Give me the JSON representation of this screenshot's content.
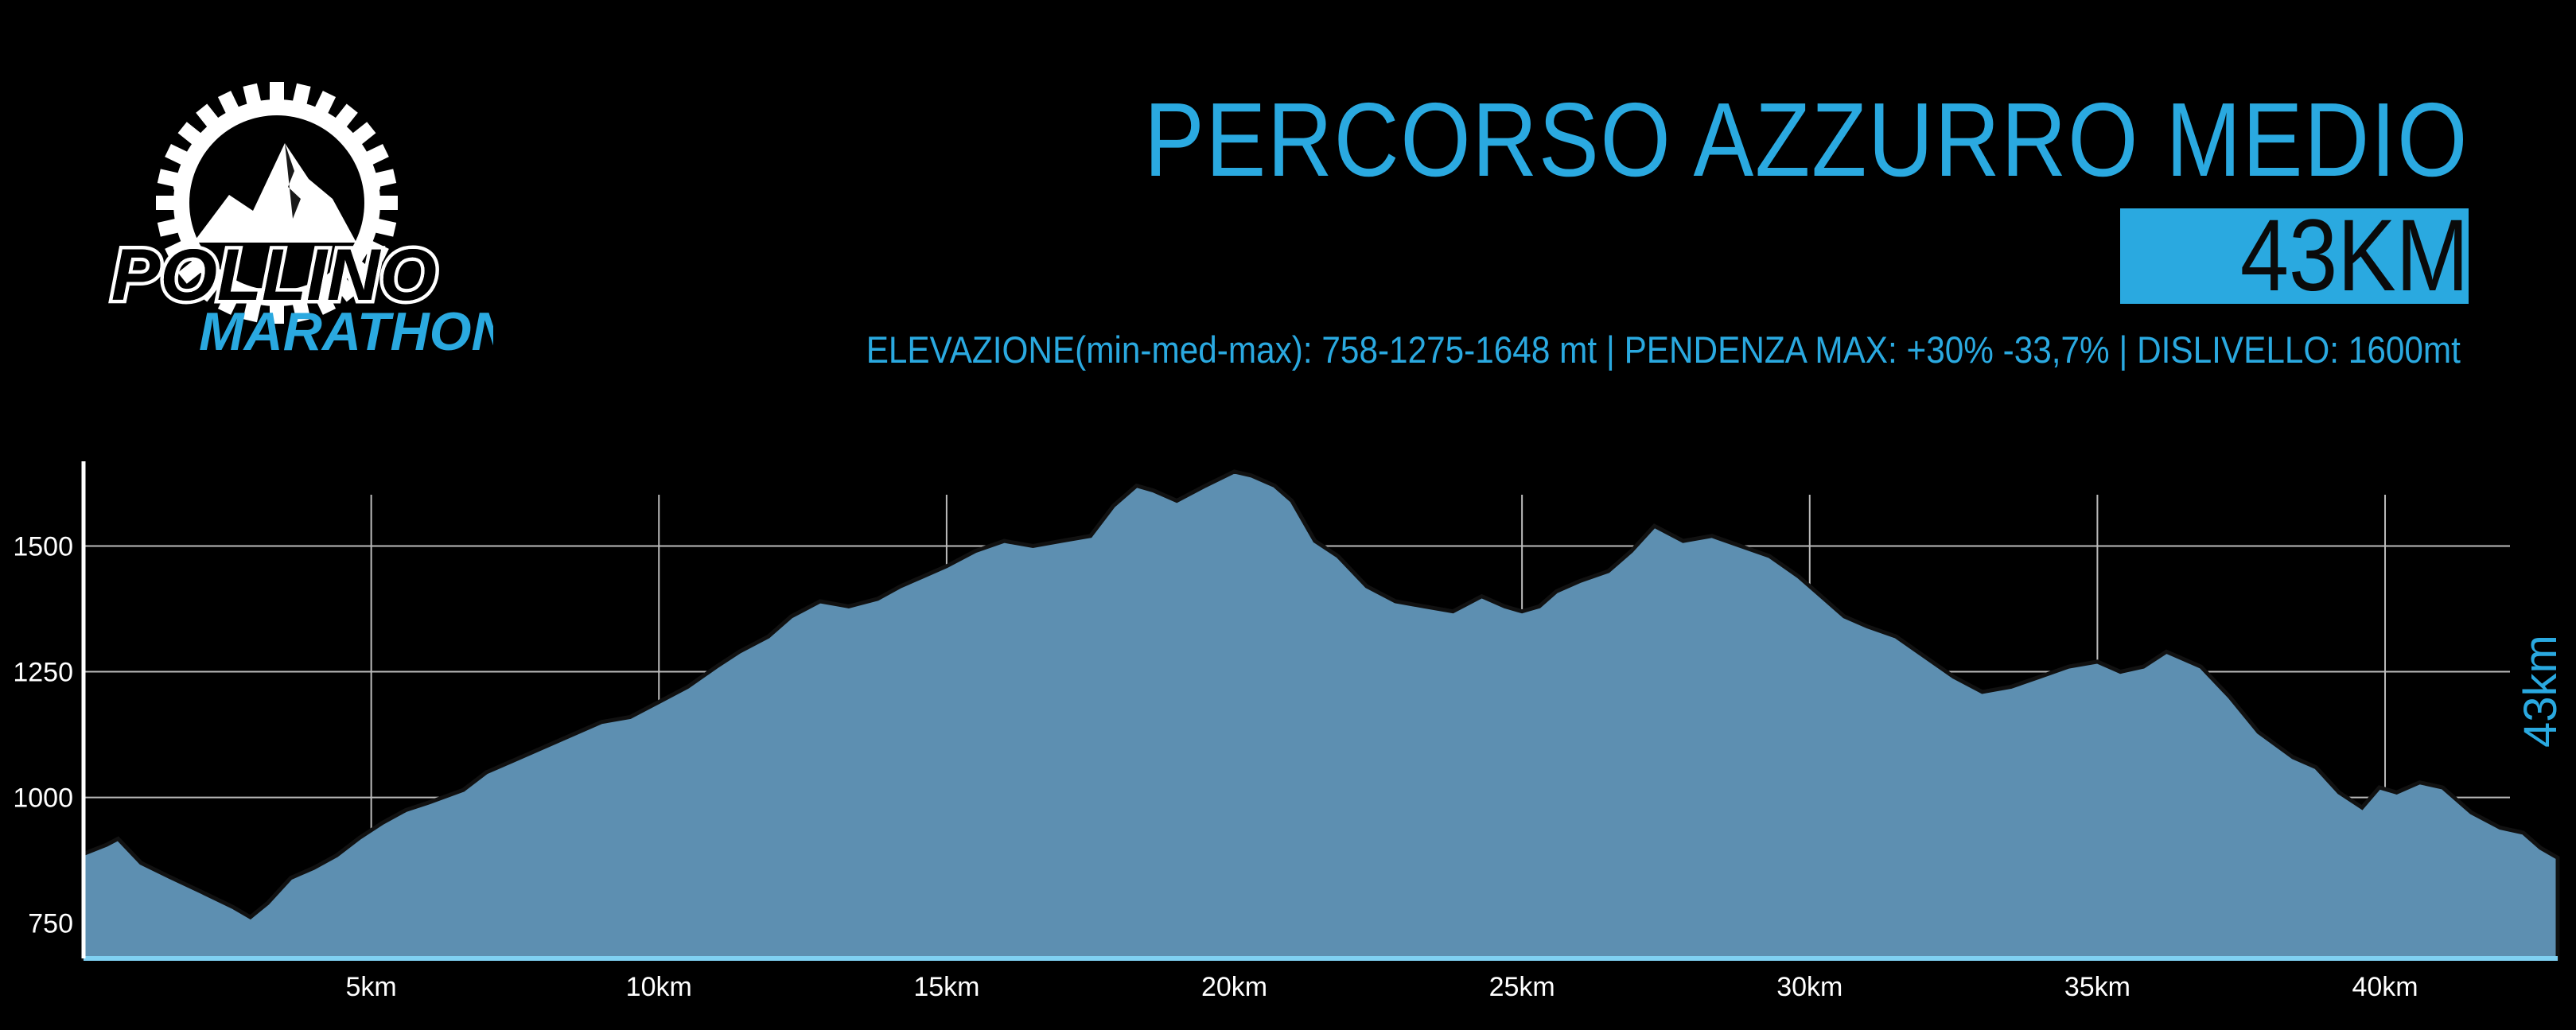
{
  "header": {
    "title": "PERCORSO AZZURRO MEDIO",
    "distance": "43KM",
    "stats": "ELEVAZIONE(min-med-max): 758-1275-1648 mt | PENDENZA MAX: +30% -33,7% | DISLIVELLO: 1600mt"
  },
  "logo": {
    "line1": "POLLINO",
    "line2": "MARATHON"
  },
  "colors": {
    "accent": "#2aa9e0",
    "fill": "#5d8fb1",
    "outline": "#111111"
  },
  "chart_data": {
    "type": "area",
    "ylim": [
      680,
      1700
    ],
    "xlim": [
      0,
      43
    ],
    "xticks": [
      5,
      10,
      15,
      20,
      25,
      30,
      35,
      40
    ],
    "xtick_labels": [
      "5km",
      "10km",
      "15km",
      "20km",
      "25km",
      "30km",
      "35km",
      "40km"
    ],
    "yticks": [
      750,
      1000,
      1250,
      1500
    ],
    "ytick_labels": [
      "750",
      "1000",
      "1250",
      "1500"
    ],
    "right_label": "43km",
    "grid": true,
    "x": [
      0,
      0.4,
      0.6,
      1.0,
      1.5,
      2.0,
      2.6,
      2.9,
      3.2,
      3.6,
      4.0,
      4.4,
      4.8,
      5.2,
      5.6,
      6.0,
      6.6,
      7.0,
      7.4,
      8.0,
      8.6,
      9.0,
      9.5,
      10.0,
      10.5,
      11.0,
      11.4,
      11.9,
      12.3,
      12.8,
      13.3,
      13.8,
      14.2,
      14.6,
      15.0,
      15.5,
      16.0,
      16.5,
      17.0,
      17.5,
      17.9,
      18.3,
      18.6,
      19.0,
      19.5,
      20.0,
      20.3,
      20.7,
      21.0,
      21.4,
      21.8,
      22.3,
      22.8,
      23.3,
      23.8,
      24.3,
      24.7,
      25.0,
      25.3,
      25.6,
      26.0,
      26.5,
      26.9,
      27.3,
      27.8,
      28.3,
      28.8,
      29.3,
      29.8,
      30.3,
      30.6,
      31.0,
      31.5,
      32.0,
      32.5,
      33.0,
      33.5,
      34.0,
      34.5,
      35.0,
      35.4,
      35.8,
      36.2,
      36.8,
      37.3,
      37.8,
      38.4,
      38.8,
      39.2,
      39.6,
      39.9,
      40.2,
      40.6,
      41.0,
      41.5,
      42.0,
      42.4,
      42.7,
      43.0
    ],
    "values": [
      888,
      906,
      918,
      870,
      842,
      815,
      782,
      762,
      790,
      840,
      860,
      885,
      920,
      950,
      975,
      990,
      1015,
      1050,
      1070,
      1100,
      1130,
      1150,
      1160,
      1190,
      1220,
      1260,
      1290,
      1320,
      1360,
      1390,
      1380,
      1395,
      1420,
      1440,
      1460,
      1490,
      1510,
      1500,
      1510,
      1520,
      1580,
      1620,
      1610,
      1590,
      1620,
      1648,
      1640,
      1620,
      1590,
      1510,
      1480,
      1420,
      1390,
      1380,
      1370,
      1400,
      1380,
      1370,
      1380,
      1410,
      1430,
      1450,
      1490,
      1540,
      1510,
      1520,
      1500,
      1480,
      1440,
      1390,
      1360,
      1340,
      1320,
      1280,
      1240,
      1210,
      1220,
      1240,
      1260,
      1270,
      1250,
      1260,
      1290,
      1260,
      1200,
      1130,
      1080,
      1060,
      1010,
      980,
      1020,
      1010,
      1030,
      1020,
      970,
      940,
      930,
      900,
      880
    ]
  }
}
